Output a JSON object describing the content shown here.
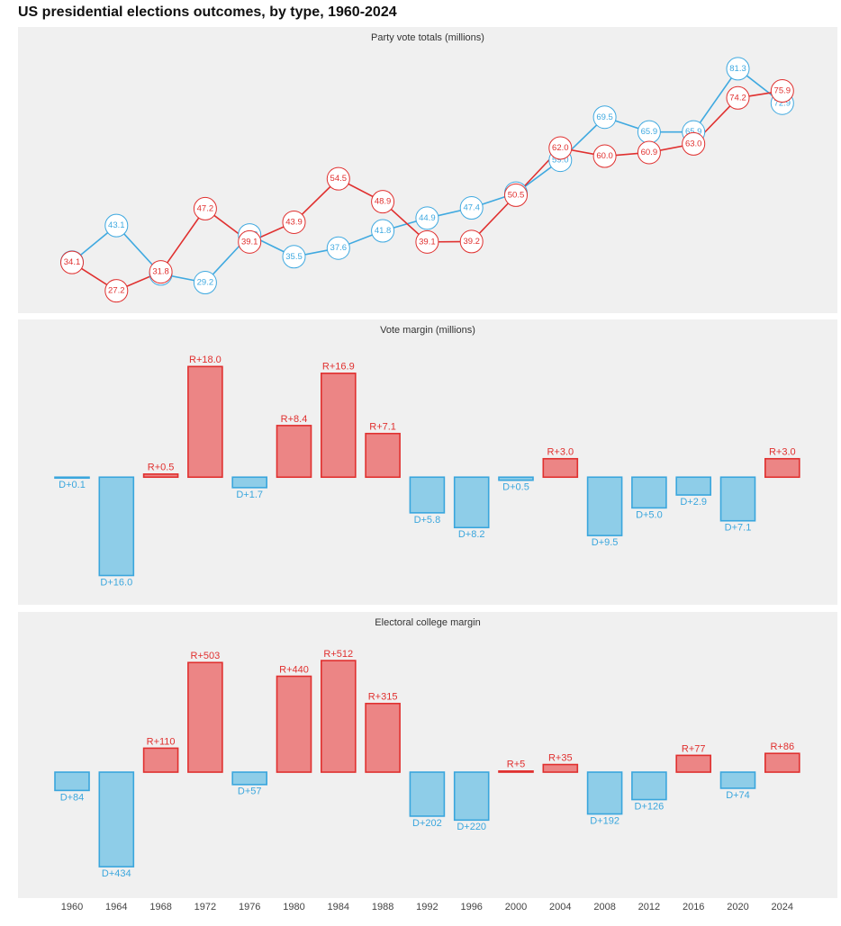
{
  "chart_data": {
    "type": "panels",
    "title": "US presidential elections outcomes, by type, 1960-2024",
    "categories": [
      "1960",
      "1964",
      "1968",
      "1972",
      "1976",
      "1980",
      "1984",
      "1988",
      "1992",
      "1996",
      "2000",
      "2004",
      "2008",
      "2012",
      "2016",
      "2020",
      "2024"
    ],
    "panels": [
      {
        "type": "line",
        "title": "Party vote totals (millions)",
        "ylim": [
          23.5,
          86
        ],
        "series": [
          {
            "name": "Democratic",
            "color": "#3fa9e0",
            "values": [
              34.2,
              43.1,
              31.3,
              29.2,
              40.8,
              35.5,
              37.6,
              41.8,
              44.9,
              47.4,
              51.0,
              59.0,
              69.5,
              65.9,
              65.9,
              81.3,
              72.9
            ],
            "value_labels": [
              "34.2",
              "43.1",
              "31.3",
              "29.2",
              "40.8",
              "35.5",
              "37.6",
              "41.8",
              "44.9",
              "47.4",
              "51.0",
              "59.0",
              "69.5",
              "65.9",
              "65.9",
              "81.3",
              "72.9"
            ]
          },
          {
            "name": "Republican",
            "color": "#e0302f",
            "values": [
              34.1,
              27.2,
              31.8,
              47.2,
              39.1,
              43.9,
              54.5,
              48.9,
              39.1,
              39.2,
              50.5,
              62.0,
              60.0,
              60.9,
              63.0,
              74.2,
              75.9
            ],
            "value_labels": [
              "34.1",
              "27.2",
              "31.8",
              "47.2",
              "39.1",
              "43.9",
              "54.5",
              "48.9",
              "39.1",
              "39.2",
              "50.5",
              "62.0",
              "60.0",
              "60.9",
              "63.0",
              "74.2",
              "75.9"
            ]
          }
        ]
      },
      {
        "type": "bar",
        "title": "Vote margin (millions)",
        "ylim": [
          -19,
          22
        ],
        "positive_color": "#e0302f",
        "negative_color": "#3aa6dd",
        "values": [
          -0.1,
          -16.0,
          0.5,
          18.0,
          -1.7,
          8.4,
          16.9,
          7.1,
          -5.8,
          -8.2,
          -0.5,
          3.0,
          -9.5,
          -5.0,
          -2.9,
          -7.1,
          3.0
        ],
        "value_labels": [
          "D+0.1",
          "D+16.0",
          "R+0.5",
          "R+18.0",
          "D+1.7",
          "R+8.4",
          "R+16.9",
          "R+7.1",
          "D+5.8",
          "D+8.2",
          "D+0.5",
          "R+3.0",
          "D+9.5",
          "D+5.0",
          "D+2.9",
          "D+7.1",
          "R+3.0"
        ]
      },
      {
        "type": "bar",
        "title": "Electoral college margin",
        "ylim": [
          -545,
          632
        ],
        "positive_color": "#e0302f",
        "negative_color": "#3aa6dd",
        "values": [
          -84,
          -434,
          110,
          503,
          -57,
          440,
          512,
          315,
          -202,
          -220,
          5,
          35,
          -192,
          -126,
          77,
          -74,
          86
        ],
        "value_labels": [
          "D+84",
          "D+434",
          "R+110",
          "R+503",
          "D+57",
          "R+440",
          "R+512",
          "R+315",
          "D+202",
          "D+220",
          "R+5",
          "R+35",
          "D+192",
          "D+126",
          "R+77",
          "D+74",
          "R+86"
        ]
      }
    ]
  }
}
